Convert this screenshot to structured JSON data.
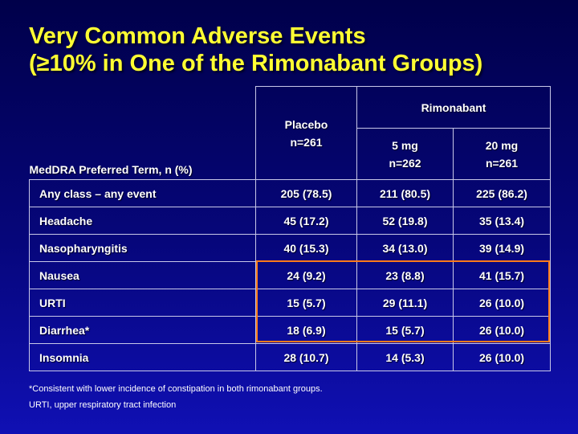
{
  "title": {
    "line1": "Very Common Adverse Events",
    "line2": "(≥10% in One of the Rimonabant Groups)"
  },
  "table": {
    "row_header_label": "MedDRA Preferred Term, n (%)",
    "placebo_label": "Placebo",
    "placebo_n": "n=261",
    "rimonabant_label": "Rimonabant",
    "dose_5mg_label": "5 mg",
    "dose_5mg_n": "n=262",
    "dose_20mg_label": "20 mg",
    "dose_20mg_n": "n=261",
    "rows": [
      {
        "term": "Any class – any event",
        "placebo": "205 (78.5)",
        "r5": "211 (80.5)",
        "r20": "225 (86.2)"
      },
      {
        "term": "Headache",
        "placebo": "45 (17.2)",
        "r5": "52 (19.8)",
        "r20": "35 (13.4)"
      },
      {
        "term": "Nasopharyngitis",
        "placebo": "40 (15.3)",
        "r5": "34 (13.0)",
        "r20": "39 (14.9)"
      },
      {
        "term": "Nausea",
        "placebo": "24 (9.2)",
        "r5": "23 (8.8)",
        "r20": "41 (15.7)"
      },
      {
        "term": "URTI",
        "placebo": "15 (5.7)",
        "r5": "29 (11.1)",
        "r20": "26 (10.0)"
      },
      {
        "term": "Diarrhea*",
        "placebo": "18 (6.9)",
        "r5": "15 (5.7)",
        "r20": "26 (10.0)"
      },
      {
        "term": "Insomnia",
        "placebo": "28 (10.7)",
        "r5": "14 (5.3)",
        "r20": "26 (10.0)"
      }
    ]
  },
  "footnotes": {
    "note1": "*Consistent with lower incidence of constipation in both rimonabant groups.",
    "note2": "URTI, upper respiratory tract infection"
  },
  "colors": {
    "title": "#ffff33",
    "highlight_box": "#ff7a1a",
    "background_top": "#00004a",
    "background_bottom": "#1010b4"
  }
}
